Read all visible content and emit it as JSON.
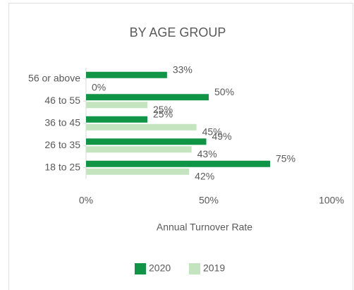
{
  "chart_data": {
    "type": "hbar",
    "title": "BY AGE GROUP",
    "x_label": "Annual Turnover Rate",
    "categories": [
      "56 or above",
      "46 to 55",
      "36 to 45",
      "26 to 35",
      "18 to 25"
    ],
    "series": [
      {
        "name": "2020",
        "color": "#109446",
        "values": [
          33,
          50,
          25,
          49,
          75
        ],
        "value_labels": [
          "33%",
          "50%",
          "25%",
          "49%",
          "75%"
        ]
      },
      {
        "name": "2019",
        "color": "#c3e4bf",
        "values": [
          0,
          25,
          45,
          43,
          42
        ],
        "value_labels": [
          "0%",
          "25%",
          "45%",
          "43%",
          "42%"
        ]
      }
    ],
    "xlim": [
      0,
      100
    ],
    "xticks": [
      {
        "value": 0,
        "label": "0%"
      },
      {
        "value": 50,
        "label": "50%"
      },
      {
        "value": 100,
        "label": "100%"
      }
    ],
    "legend": "bottom"
  }
}
